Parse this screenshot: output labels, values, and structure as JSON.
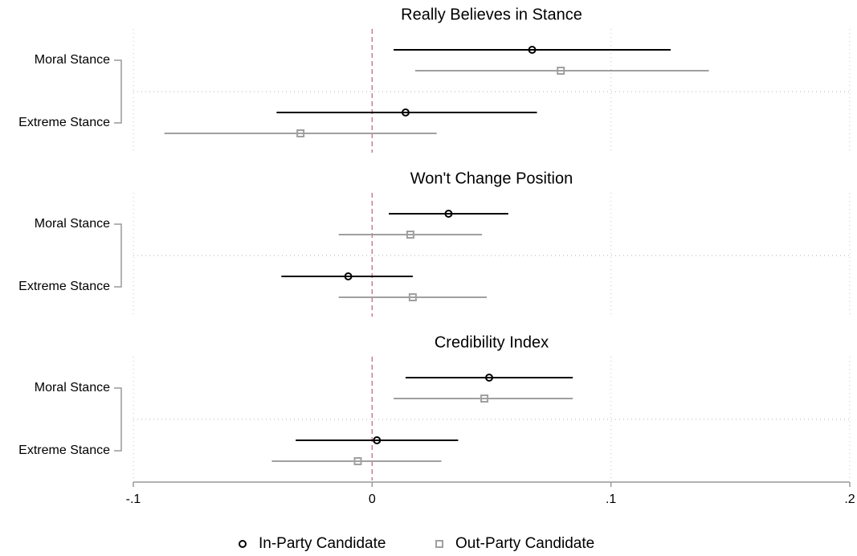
{
  "legend": [
    {
      "name": "In-Party Candidate",
      "color": "#000000",
      "marker": "circle"
    },
    {
      "name": "Out-Party Candidate",
      "color": "#a0a0a0",
      "marker": "square"
    }
  ],
  "x_axis": {
    "xlim": [
      -0.1,
      0.2
    ],
    "xticks": [
      {
        "value": -0.1,
        "label": "-.1"
      },
      0,
      {
        "value": 0.1,
        "label": ".1"
      },
      {
        "value": 0.2,
        "label": ".2"
      }
    ],
    "refline": 0,
    "grid": true
  },
  "chart_data": [
    {
      "type": "coefplot",
      "title": "Really Believes in Stance",
      "categories": [
        "Moral Stance",
        "Extreme Stance"
      ],
      "series": [
        {
          "values": [
            0.067,
            0.014
          ],
          "lower": [
            0.009,
            -0.04
          ],
          "upper": [
            0.125,
            0.069
          ]
        },
        {
          "values": [
            0.079,
            -0.03
          ],
          "lower": [
            0.018,
            -0.087
          ],
          "upper": [
            0.141,
            0.027
          ]
        }
      ]
    },
    {
      "type": "coefplot",
      "title": "Won't Change Position",
      "categories": [
        "Moral Stance",
        "Extreme Stance"
      ],
      "series": [
        {
          "values": [
            0.032,
            -0.01
          ],
          "lower": [
            0.007,
            -0.038
          ],
          "upper": [
            0.057,
            0.017
          ]
        },
        {
          "values": [
            0.016,
            0.017
          ],
          "lower": [
            -0.014,
            -0.014
          ],
          "upper": [
            0.046,
            0.048
          ]
        }
      ]
    },
    {
      "type": "coefplot",
      "title": "Credibility Index",
      "categories": [
        "Moral Stance",
        "Extreme Stance"
      ],
      "series": [
        {
          "values": [
            0.049,
            0.002
          ],
          "lower": [
            0.014,
            -0.032
          ],
          "upper": [
            0.084,
            0.036
          ]
        },
        {
          "values": [
            0.047,
            -0.006
          ],
          "lower": [
            0.009,
            -0.042
          ],
          "upper": [
            0.084,
            0.029
          ]
        }
      ]
    }
  ]
}
